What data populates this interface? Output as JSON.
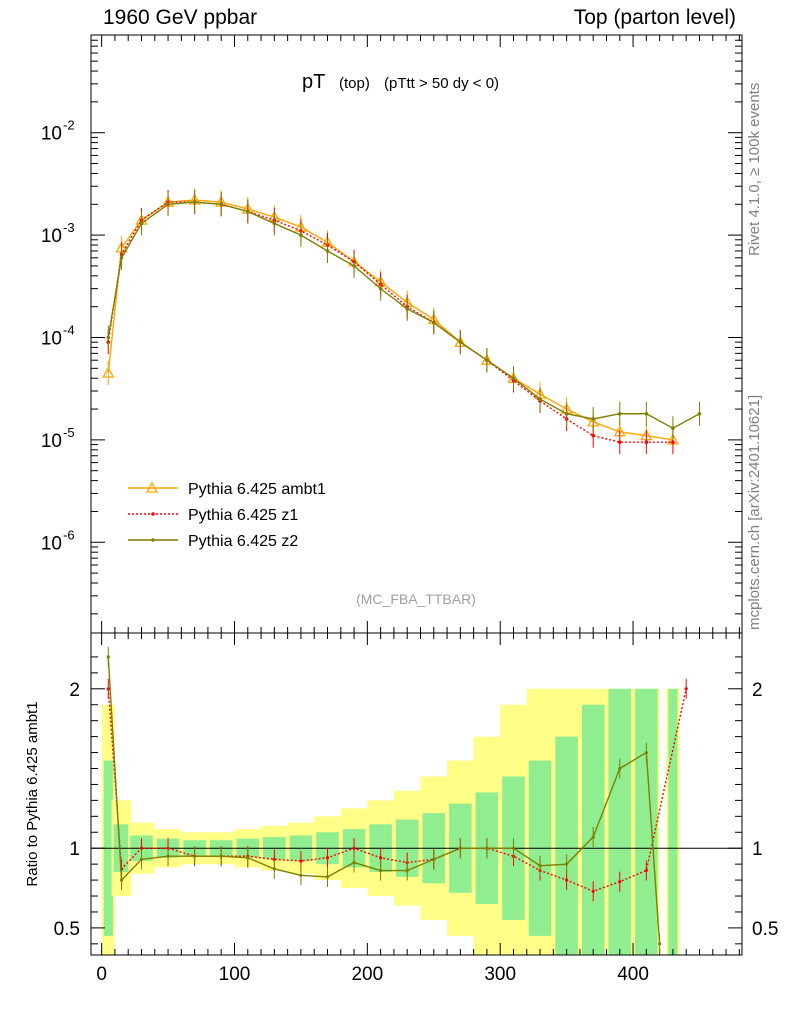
{
  "header": {
    "left": "1960 GeV ppbar",
    "right": "Top (parton level)"
  },
  "sidebar": {
    "rivet": "Rivet 4.1.0, ≥ 100k events",
    "mcplots": "mcplots.cern.ch [arXiv:2401.10621]"
  },
  "chart_data": {
    "type": "line",
    "title_main": "pT",
    "title_sub": "(top)",
    "title_cut": "(pTtt > 50 dy < 0)",
    "watermark": "(MC_FBA_TTBAR)",
    "xlim": [
      -8,
      482
    ],
    "ylim": [
      1.3e-07,
      0.09
    ],
    "yscale": "log",
    "x_ticks": [
      0,
      100,
      200,
      300,
      400
    ],
    "y_ticks": [
      {
        "base": "10",
        "exp": "-2",
        "value": 0.01
      },
      {
        "base": "10",
        "exp": "-3",
        "value": 0.001
      },
      {
        "base": "10",
        "exp": "-4",
        "value": 0.0001
      },
      {
        "base": "10",
        "exp": "-5",
        "value": 1e-05
      },
      {
        "base": "10",
        "exp": "-6",
        "value": 1e-06
      }
    ],
    "ratio": {
      "ylabel": "Ratio to Pythia 6.425 ambt1",
      "ylim": [
        0.33,
        2.35
      ],
      "ticks": [
        {
          "label": "0.5",
          "value": 0.5
        },
        {
          "label": "1",
          "value": 1
        },
        {
          "label": "2",
          "value": 2
        }
      ]
    },
    "series": [
      {
        "name": "Pythia 6.425 ambt1",
        "color": "#ffa500",
        "dash": "",
        "marker": "triangle",
        "x": [
          5,
          15,
          30,
          50,
          70,
          90,
          110,
          130,
          150,
          170,
          190,
          210,
          230,
          250,
          270,
          290,
          310,
          330,
          350,
          370,
          390,
          410,
          430
        ],
        "y": [
          4.5e-05,
          0.00075,
          0.0014,
          0.0021,
          0.0022,
          0.0021,
          0.0018,
          0.0015,
          0.0012,
          0.00085,
          0.00055,
          0.00035,
          0.00022,
          0.00015,
          9e-05,
          6e-05,
          4e-05,
          2.8e-05,
          2e-05,
          1.5e-05,
          1.2e-05,
          1.1e-05,
          1e-05
        ]
      },
      {
        "name": "Pythia 6.425 z1",
        "color": "#ff0000",
        "dash": "2,2",
        "marker": "dot",
        "x": [
          5,
          15,
          30,
          50,
          70,
          90,
          110,
          130,
          150,
          170,
          190,
          210,
          230,
          250,
          270,
          290,
          310,
          330,
          350,
          370,
          390,
          410,
          430
        ],
        "y": [
          9e-05,
          0.00065,
          0.0014,
          0.0021,
          0.0021,
          0.002,
          0.0017,
          0.0014,
          0.0011,
          0.0008,
          0.00055,
          0.00033,
          0.0002,
          0.00014,
          9e-05,
          6e-05,
          3.8e-05,
          2.4e-05,
          1.6e-05,
          1.1e-05,
          9.5e-06,
          9.5e-06,
          9.5e-06
        ]
      },
      {
        "name": "Pythia 6.425 z2",
        "color": "#7f7f00",
        "dash": "",
        "marker": "dot",
        "x": [
          5,
          15,
          30,
          50,
          70,
          90,
          110,
          130,
          150,
          170,
          190,
          210,
          230,
          250,
          270,
          290,
          310,
          330,
          350,
          370,
          390,
          410,
          430,
          450
        ],
        "y": [
          0.0001,
          0.0006,
          0.0013,
          0.002,
          0.0021,
          0.002,
          0.0017,
          0.0013,
          0.001,
          0.0007,
          0.0005,
          0.0003,
          0.00019,
          0.00014,
          9e-05,
          6e-05,
          4e-05,
          2.5e-05,
          1.8e-05,
          1.6e-05,
          1.8e-05,
          1.8e-05,
          1.3e-05,
          1.8e-05
        ]
      }
    ],
    "ratio_series": [
      {
        "name": "Pythia 6.425 z1",
        "color": "#ff0000",
        "dash": "2,2",
        "x": [
          5,
          15,
          30,
          50,
          70,
          90,
          110,
          130,
          150,
          170,
          190,
          210,
          230,
          250,
          270,
          290,
          310,
          330,
          350,
          370,
          390,
          410,
          440
        ],
        "y": [
          2.0,
          0.87,
          1.0,
          1.0,
          0.95,
          0.95,
          0.95,
          0.93,
          0.92,
          0.94,
          1.0,
          0.94,
          0.91,
          0.93,
          1.0,
          1.0,
          0.95,
          0.86,
          0.8,
          0.73,
          0.79,
          0.86,
          2.0
        ]
      },
      {
        "name": "Pythia 6.425 z2",
        "color": "#7f7f00",
        "dash": "",
        "x": [
          5,
          15,
          30,
          50,
          70,
          90,
          110,
          130,
          150,
          170,
          190,
          210,
          230,
          250,
          270,
          290,
          310,
          330,
          350,
          370,
          390,
          410,
          420
        ],
        "y": [
          2.2,
          0.8,
          0.93,
          0.95,
          0.95,
          0.95,
          0.94,
          0.87,
          0.83,
          0.82,
          0.91,
          0.86,
          0.86,
          0.93,
          1.0,
          1.0,
          1.0,
          0.89,
          0.9,
          1.07,
          1.5,
          1.6,
          0.4
        ]
      }
    ],
    "bands": {
      "x": [
        5,
        15,
        30,
        50,
        70,
        90,
        110,
        130,
        150,
        170,
        190,
        210,
        230,
        250,
        270,
        290,
        310,
        330,
        350,
        370,
        390,
        410,
        430
      ],
      "inner": [
        0.55,
        0.15,
        0.08,
        0.06,
        0.05,
        0.05,
        0.06,
        0.07,
        0.08,
        0.1,
        0.12,
        0.15,
        0.18,
        0.22,
        0.28,
        0.35,
        0.45,
        0.55,
        0.7,
        0.9,
        1.0,
        1.0,
        1.0
      ],
      "outer": [
        0.9,
        0.3,
        0.16,
        0.12,
        0.1,
        0.1,
        0.12,
        0.14,
        0.16,
        0.2,
        0.25,
        0.3,
        0.36,
        0.45,
        0.55,
        0.7,
        0.9,
        1.0,
        1.0,
        1.0,
        1.0,
        1.0,
        1.0
      ],
      "inner_color": "#90ee90",
      "outer_color": "#ffff88"
    }
  }
}
